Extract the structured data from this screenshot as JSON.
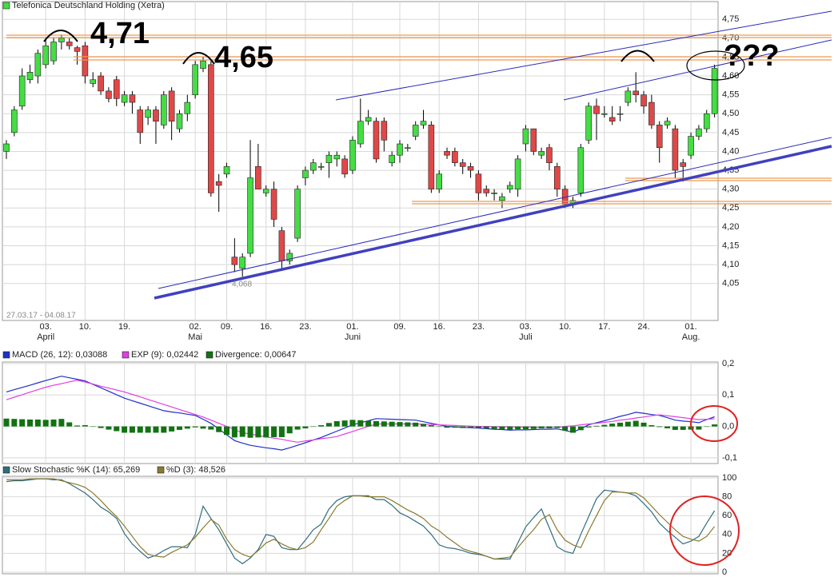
{
  "chart_data": [
    {
      "type": "candlestick",
      "title": "Telefonica Deutschland Holding (Xetra)",
      "subtitle": "27.03.17 - 04.08.17",
      "color_up": "#44dd44",
      "color_down": "#e04848",
      "open": [
        4.4,
        4.45,
        4.52,
        4.59,
        4.6,
        4.63,
        4.64,
        4.69,
        4.69,
        4.675,
        4.68,
        4.58,
        4.6,
        4.56,
        4.59,
        4.53,
        4.55,
        4.51,
        4.49,
        4.51,
        4.47,
        4.56,
        4.46,
        4.5,
        4.55,
        4.62,
        4.63,
        4.32,
        4.34,
        4.12,
        4.09,
        4.13,
        4.36,
        4.29,
        4.3,
        4.19,
        4.11,
        4.17,
        4.33,
        4.35,
        4.36,
        4.37,
        4.38,
        4.38,
        4.35,
        4.42,
        4.48,
        4.48,
        4.48,
        4.37,
        4.39,
        4.41,
        4.44,
        4.47,
        4.47,
        4.3,
        4.4,
        4.4,
        4.37,
        4.36,
        4.34,
        4.3,
        4.29,
        4.27,
        4.3,
        4.3,
        4.42,
        4.46,
        4.39,
        4.41,
        4.36,
        4.3,
        4.26,
        4.29,
        4.43,
        4.52,
        4.5,
        4.49,
        4.5,
        4.53,
        4.56,
        4.55,
        4.53,
        4.47,
        4.47,
        4.46,
        4.37,
        4.39,
        4.44,
        4.46,
        4.5
      ],
      "high": [
        4.43,
        4.52,
        4.62,
        4.63,
        4.67,
        4.7,
        4.7,
        4.71,
        4.7,
        4.68,
        4.69,
        4.61,
        4.61,
        4.57,
        4.6,
        4.56,
        4.56,
        4.52,
        4.52,
        4.52,
        4.56,
        4.57,
        4.51,
        4.55,
        4.64,
        4.65,
        4.64,
        4.34,
        4.37,
        4.17,
        4.13,
        4.43,
        4.42,
        4.31,
        4.32,
        4.2,
        4.14,
        4.31,
        4.36,
        4.38,
        4.37,
        4.4,
        4.4,
        4.39,
        4.44,
        4.54,
        4.51,
        4.49,
        4.49,
        4.4,
        4.43,
        4.42,
        4.48,
        4.51,
        4.48,
        4.35,
        4.41,
        4.41,
        4.38,
        4.37,
        4.35,
        4.31,
        4.3,
        4.29,
        4.32,
        4.39,
        4.47,
        4.46,
        4.41,
        4.42,
        4.37,
        4.31,
        4.28,
        4.42,
        4.53,
        4.54,
        4.52,
        4.52,
        4.52,
        4.57,
        4.61,
        4.56,
        4.55,
        4.48,
        4.49,
        4.47,
        4.38,
        4.45,
        4.47,
        4.51,
        4.63
      ],
      "low": [
        4.38,
        4.44,
        4.51,
        4.58,
        4.58,
        4.62,
        4.63,
        4.67,
        4.67,
        4.63,
        4.58,
        4.57,
        4.55,
        4.53,
        4.52,
        4.52,
        4.5,
        4.42,
        4.47,
        4.42,
        4.46,
        4.43,
        4.45,
        4.48,
        4.54,
        4.61,
        4.28,
        4.24,
        4.33,
        4.08,
        4.068,
        4.12,
        4.3,
        4.28,
        4.2,
        4.09,
        4.1,
        4.16,
        4.31,
        4.34,
        4.35,
        4.33,
        4.36,
        4.33,
        4.34,
        4.41,
        4.47,
        4.37,
        4.4,
        4.36,
        4.37,
        4.4,
        4.43,
        4.46,
        4.29,
        4.29,
        4.38,
        4.36,
        4.34,
        4.33,
        4.27,
        4.28,
        4.27,
        4.25,
        4.29,
        4.28,
        4.4,
        4.39,
        4.38,
        4.35,
        4.28,
        4.25,
        4.25,
        4.28,
        4.42,
        4.43,
        4.49,
        4.47,
        4.48,
        4.52,
        4.53,
        4.5,
        4.46,
        4.37,
        4.46,
        4.33,
        4.32,
        4.38,
        4.43,
        4.45,
        4.49
      ],
      "close": [
        4.42,
        4.51,
        4.6,
        4.61,
        4.66,
        4.68,
        4.69,
        4.7,
        4.68,
        4.665,
        4.6,
        4.59,
        4.56,
        4.54,
        4.54,
        4.55,
        4.53,
        4.45,
        4.51,
        4.48,
        4.55,
        4.48,
        4.5,
        4.53,
        4.63,
        4.64,
        4.29,
        4.31,
        4.36,
        4.1,
        4.12,
        4.33,
        4.3,
        4.3,
        4.22,
        4.11,
        4.13,
        4.3,
        4.35,
        4.37,
        4.36,
        4.39,
        4.39,
        4.34,
        4.43,
        4.48,
        4.49,
        4.38,
        4.43,
        4.39,
        4.42,
        4.41,
        4.47,
        4.48,
        4.3,
        4.34,
        4.39,
        4.37,
        4.36,
        4.35,
        4.29,
        4.29,
        4.29,
        4.28,
        4.31,
        4.38,
        4.46,
        4.4,
        4.4,
        4.37,
        4.3,
        4.26,
        4.27,
        4.41,
        4.52,
        4.5,
        4.5,
        4.48,
        4.5,
        4.56,
        4.55,
        4.52,
        4.47,
        4.41,
        4.48,
        4.35,
        4.36,
        4.44,
        4.46,
        4.5,
        4.62
      ],
      "xticks": [
        {
          "value": 5,
          "label": "03."
        },
        {
          "value": 10,
          "label": "10."
        },
        {
          "value": 15,
          "label": "19."
        },
        {
          "value": 24,
          "label": "02."
        },
        {
          "value": 28,
          "label": "09."
        },
        {
          "value": 33,
          "label": "16."
        },
        {
          "value": 38,
          "label": "23."
        },
        {
          "value": 44,
          "label": "01."
        },
        {
          "value": 50,
          "label": "09."
        },
        {
          "value": 55,
          "label": "16."
        },
        {
          "value": 60,
          "label": "23."
        },
        {
          "value": 66,
          "label": "03."
        },
        {
          "value": 71,
          "label": "10."
        },
        {
          "value": 76,
          "label": "17."
        },
        {
          "value": 81,
          "label": "24."
        },
        {
          "value": 87,
          "label": "01."
        }
      ],
      "month_labels": [
        {
          "value": 5,
          "label": "April"
        },
        {
          "value": 24,
          "label": "Mai"
        },
        {
          "value": 44,
          "label": "Juni"
        },
        {
          "value": 66,
          "label": "Juli"
        },
        {
          "value": 87,
          "label": "Aug."
        }
      ],
      "ylim": [
        3.952,
        4.797
      ],
      "yticks": [
        {
          "value": 4.05,
          "label": "4,05"
        },
        {
          "value": 4.1,
          "label": "4,10"
        },
        {
          "value": 4.15,
          "label": "4,15"
        },
        {
          "value": 4.2,
          "label": "4,20"
        },
        {
          "value": 4.25,
          "label": "4,25"
        },
        {
          "value": 4.3,
          "label": "4,30"
        },
        {
          "value": 4.35,
          "label": "4,35"
        },
        {
          "value": 4.4,
          "label": "4,40"
        },
        {
          "value": 4.45,
          "label": "4,45"
        },
        {
          "value": 4.5,
          "label": "4,50"
        },
        {
          "value": 4.55,
          "label": "4,55"
        },
        {
          "value": 4.6,
          "label": "4,60"
        },
        {
          "value": 4.65,
          "label": "4,65"
        },
        {
          "value": 4.7,
          "label": "4,70"
        },
        {
          "value": 4.75,
          "label": "4,75"
        }
      ],
      "grid": true,
      "annotations": [
        "4,71",
        "4,65",
        "???",
        "4,068"
      ]
    },
    {
      "type": "macd",
      "series": [
        {
          "name": "MACD (26, 12): 0,03088",
          "color": "#1f2fc8",
          "style": "line",
          "values": [
            0.11,
            0.117,
            0.124,
            0.131,
            0.139,
            0.146,
            0.153,
            0.16,
            0.155,
            0.15,
            0.145,
            0.134,
            0.123,
            0.112,
            0.101,
            0.09,
            0.082,
            0.074,
            0.066,
            0.058,
            0.05,
            0.046,
            0.043,
            0.039,
            0.035,
            0.023,
            0.01,
            -0.008,
            -0.027,
            -0.045,
            -0.053,
            -0.06,
            -0.064,
            -0.068,
            -0.071,
            -0.075,
            -0.068,
            -0.06,
            -0.052,
            -0.043,
            -0.035,
            -0.025,
            -0.015,
            -0.005,
            0.005,
            0.012,
            0.018,
            0.025,
            0.024,
            0.023,
            0.022,
            0.021,
            0.02,
            0.015,
            0.01,
            0.005,
            0.0,
            -0.001,
            -0.003,
            -0.004,
            -0.005,
            -0.007,
            -0.009,
            -0.01,
            -0.012,
            -0.011,
            -0.011,
            -0.01,
            -0.009,
            -0.009,
            -0.008,
            -0.013,
            -0.018,
            -0.007,
            0.005,
            0.012,
            0.018,
            0.025,
            0.032,
            0.038,
            0.045,
            0.042,
            0.038,
            0.035,
            0.028,
            0.02,
            0.017,
            0.015,
            0.012,
            0.022,
            0.03088
          ]
        },
        {
          "name": "EXP (9): 0,02442",
          "color": "#e040e0",
          "style": "line",
          "values": [
            0.085,
            0.093,
            0.101,
            0.109,
            0.117,
            0.125,
            0.131,
            0.136,
            0.142,
            0.147,
            0.141,
            0.135,
            0.128,
            0.122,
            0.116,
            0.11,
            0.102,
            0.094,
            0.086,
            0.078,
            0.07,
            0.062,
            0.054,
            0.046,
            0.038,
            0.03,
            0.02,
            0.01,
            0.0,
            -0.01,
            -0.02,
            -0.024,
            -0.029,
            -0.033,
            -0.037,
            -0.041,
            -0.046,
            -0.05,
            -0.046,
            -0.043,
            -0.039,
            -0.036,
            -0.032,
            -0.024,
            -0.016,
            -0.008,
            0.0,
            0.008,
            0.008,
            0.008,
            0.008,
            0.008,
            0.008,
            0.007,
            0.006,
            0.005,
            0.004,
            0.003,
            0.002,
            0.001,
            0.0,
            0.0,
            -0.001,
            -0.001,
            -0.001,
            -0.002,
            -0.002,
            -0.002,
            -0.003,
            -0.003,
            -0.003,
            0.0,
            0.002,
            0.005,
            0.008,
            0.01,
            0.013,
            0.016,
            0.02,
            0.023,
            0.027,
            0.03,
            0.034,
            0.037,
            0.034,
            0.031,
            0.028,
            0.025,
            0.022,
            0.023,
            0.02442
          ]
        },
        {
          "name": "Divergence: 0,00647",
          "color": "#127212",
          "style": "bar",
          "values": [
            0.025,
            0.024,
            0.023,
            0.022,
            0.022,
            0.021,
            0.022,
            0.024,
            0.013,
            0.003,
            0.004,
            -0.001,
            -0.005,
            -0.01,
            -0.015,
            -0.02,
            -0.02,
            -0.02,
            -0.02,
            -0.02,
            -0.02,
            -0.016,
            -0.011,
            -0.007,
            -0.003,
            -0.007,
            -0.01,
            -0.018,
            -0.027,
            -0.035,
            -0.033,
            -0.036,
            -0.035,
            -0.035,
            -0.034,
            -0.034,
            -0.022,
            -0.01,
            -0.006,
            0.0,
            0.004,
            0.011,
            0.017,
            0.019,
            0.021,
            0.02,
            0.018,
            0.017,
            0.016,
            0.015,
            0.014,
            0.013,
            0.012,
            0.008,
            0.004,
            0.0,
            -0.004,
            -0.004,
            -0.005,
            -0.005,
            -0.005,
            -0.007,
            -0.008,
            -0.009,
            -0.011,
            -0.009,
            -0.009,
            -0.008,
            -0.006,
            -0.006,
            -0.005,
            -0.013,
            -0.02,
            -0.012,
            -0.003,
            0.002,
            0.005,
            0.009,
            0.012,
            0.015,
            0.018,
            0.012,
            0.004,
            -0.002,
            -0.006,
            -0.011,
            -0.011,
            -0.01,
            -0.01,
            -0.001,
            0.00647
          ]
        }
      ],
      "ylim": [
        -0.118,
        0.205
      ],
      "yticks": [
        {
          "value": -0.1,
          "label": "-0,1"
        },
        {
          "value": 0,
          "label": "0,0"
        },
        {
          "value": 0.1,
          "label": "0,1"
        },
        {
          "value": 0.2,
          "label": "0,2"
        }
      ],
      "grid": true
    },
    {
      "type": "line",
      "series": [
        {
          "name": "Slow Stochastic %K (14): 65,269",
          "color": "#2e6e7e",
          "values": [
            96,
            97,
            97,
            98,
            99,
            99,
            98,
            98,
            94,
            89,
            84,
            77,
            69,
            64,
            57,
            41,
            30,
            22,
            15,
            18,
            23,
            27,
            27,
            26,
            40,
            70,
            57,
            45,
            30,
            15,
            9,
            15,
            24,
            40,
            38,
            26,
            24,
            24,
            34,
            45,
            51,
            67,
            76,
            80,
            81,
            81,
            81,
            77,
            77,
            71,
            63,
            59,
            54,
            49,
            40,
            29,
            26,
            25,
            23,
            20,
            19,
            17,
            14,
            14,
            14,
            31,
            48,
            58,
            67,
            47,
            27,
            22,
            20,
            40,
            59,
            78,
            87,
            86,
            85,
            84,
            81,
            73,
            64,
            52,
            44,
            37,
            30,
            33,
            38,
            52,
            65.269
          ]
        },
        {
          "name": "%D (3): 48,526",
          "color": "#8a7a2e",
          "values": [
            98,
            98,
            98,
            99,
            99,
            99,
            99,
            97,
            95,
            93,
            90,
            84,
            76,
            67,
            59,
            49,
            38,
            27,
            19,
            17,
            16,
            21,
            25,
            29,
            37,
            47,
            56,
            50,
            35,
            24,
            19,
            16,
            23,
            31,
            35,
            30,
            26,
            24,
            26,
            32,
            45,
            57,
            70,
            76,
            81,
            81,
            80,
            80,
            80,
            76,
            71,
            66,
            62,
            57,
            49,
            44,
            37,
            31,
            25,
            22,
            20,
            17,
            14,
            15,
            16,
            26,
            36,
            45,
            56,
            61,
            45,
            34,
            29,
            26,
            44,
            60,
            76,
            85,
            85,
            84,
            84,
            79,
            70,
            61,
            53,
            45,
            38,
            35,
            33,
            38,
            48.526
          ]
        }
      ],
      "ylim": [
        -1.7,
        101.7
      ],
      "yticks": [
        0,
        20,
        40,
        60,
        80,
        100
      ],
      "grid": true
    }
  ]
}
